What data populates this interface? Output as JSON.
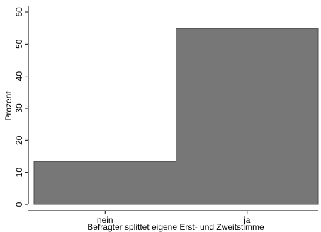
{
  "chart_data": {
    "type": "bar",
    "categories": [
      "nein",
      "ja"
    ],
    "values": [
      13.4,
      54.8
    ],
    "xlabel": "Befragter splittet eigene Erst- und Zweitstimme",
    "ylabel": "Prozent",
    "ylim": [
      0,
      60
    ],
    "yticks": [
      "0",
      "10",
      "20",
      "30",
      "40",
      "50",
      "60"
    ],
    "grid": false,
    "bar_color": "#777777",
    "bar_edge_color": "#4d4d4d"
  }
}
